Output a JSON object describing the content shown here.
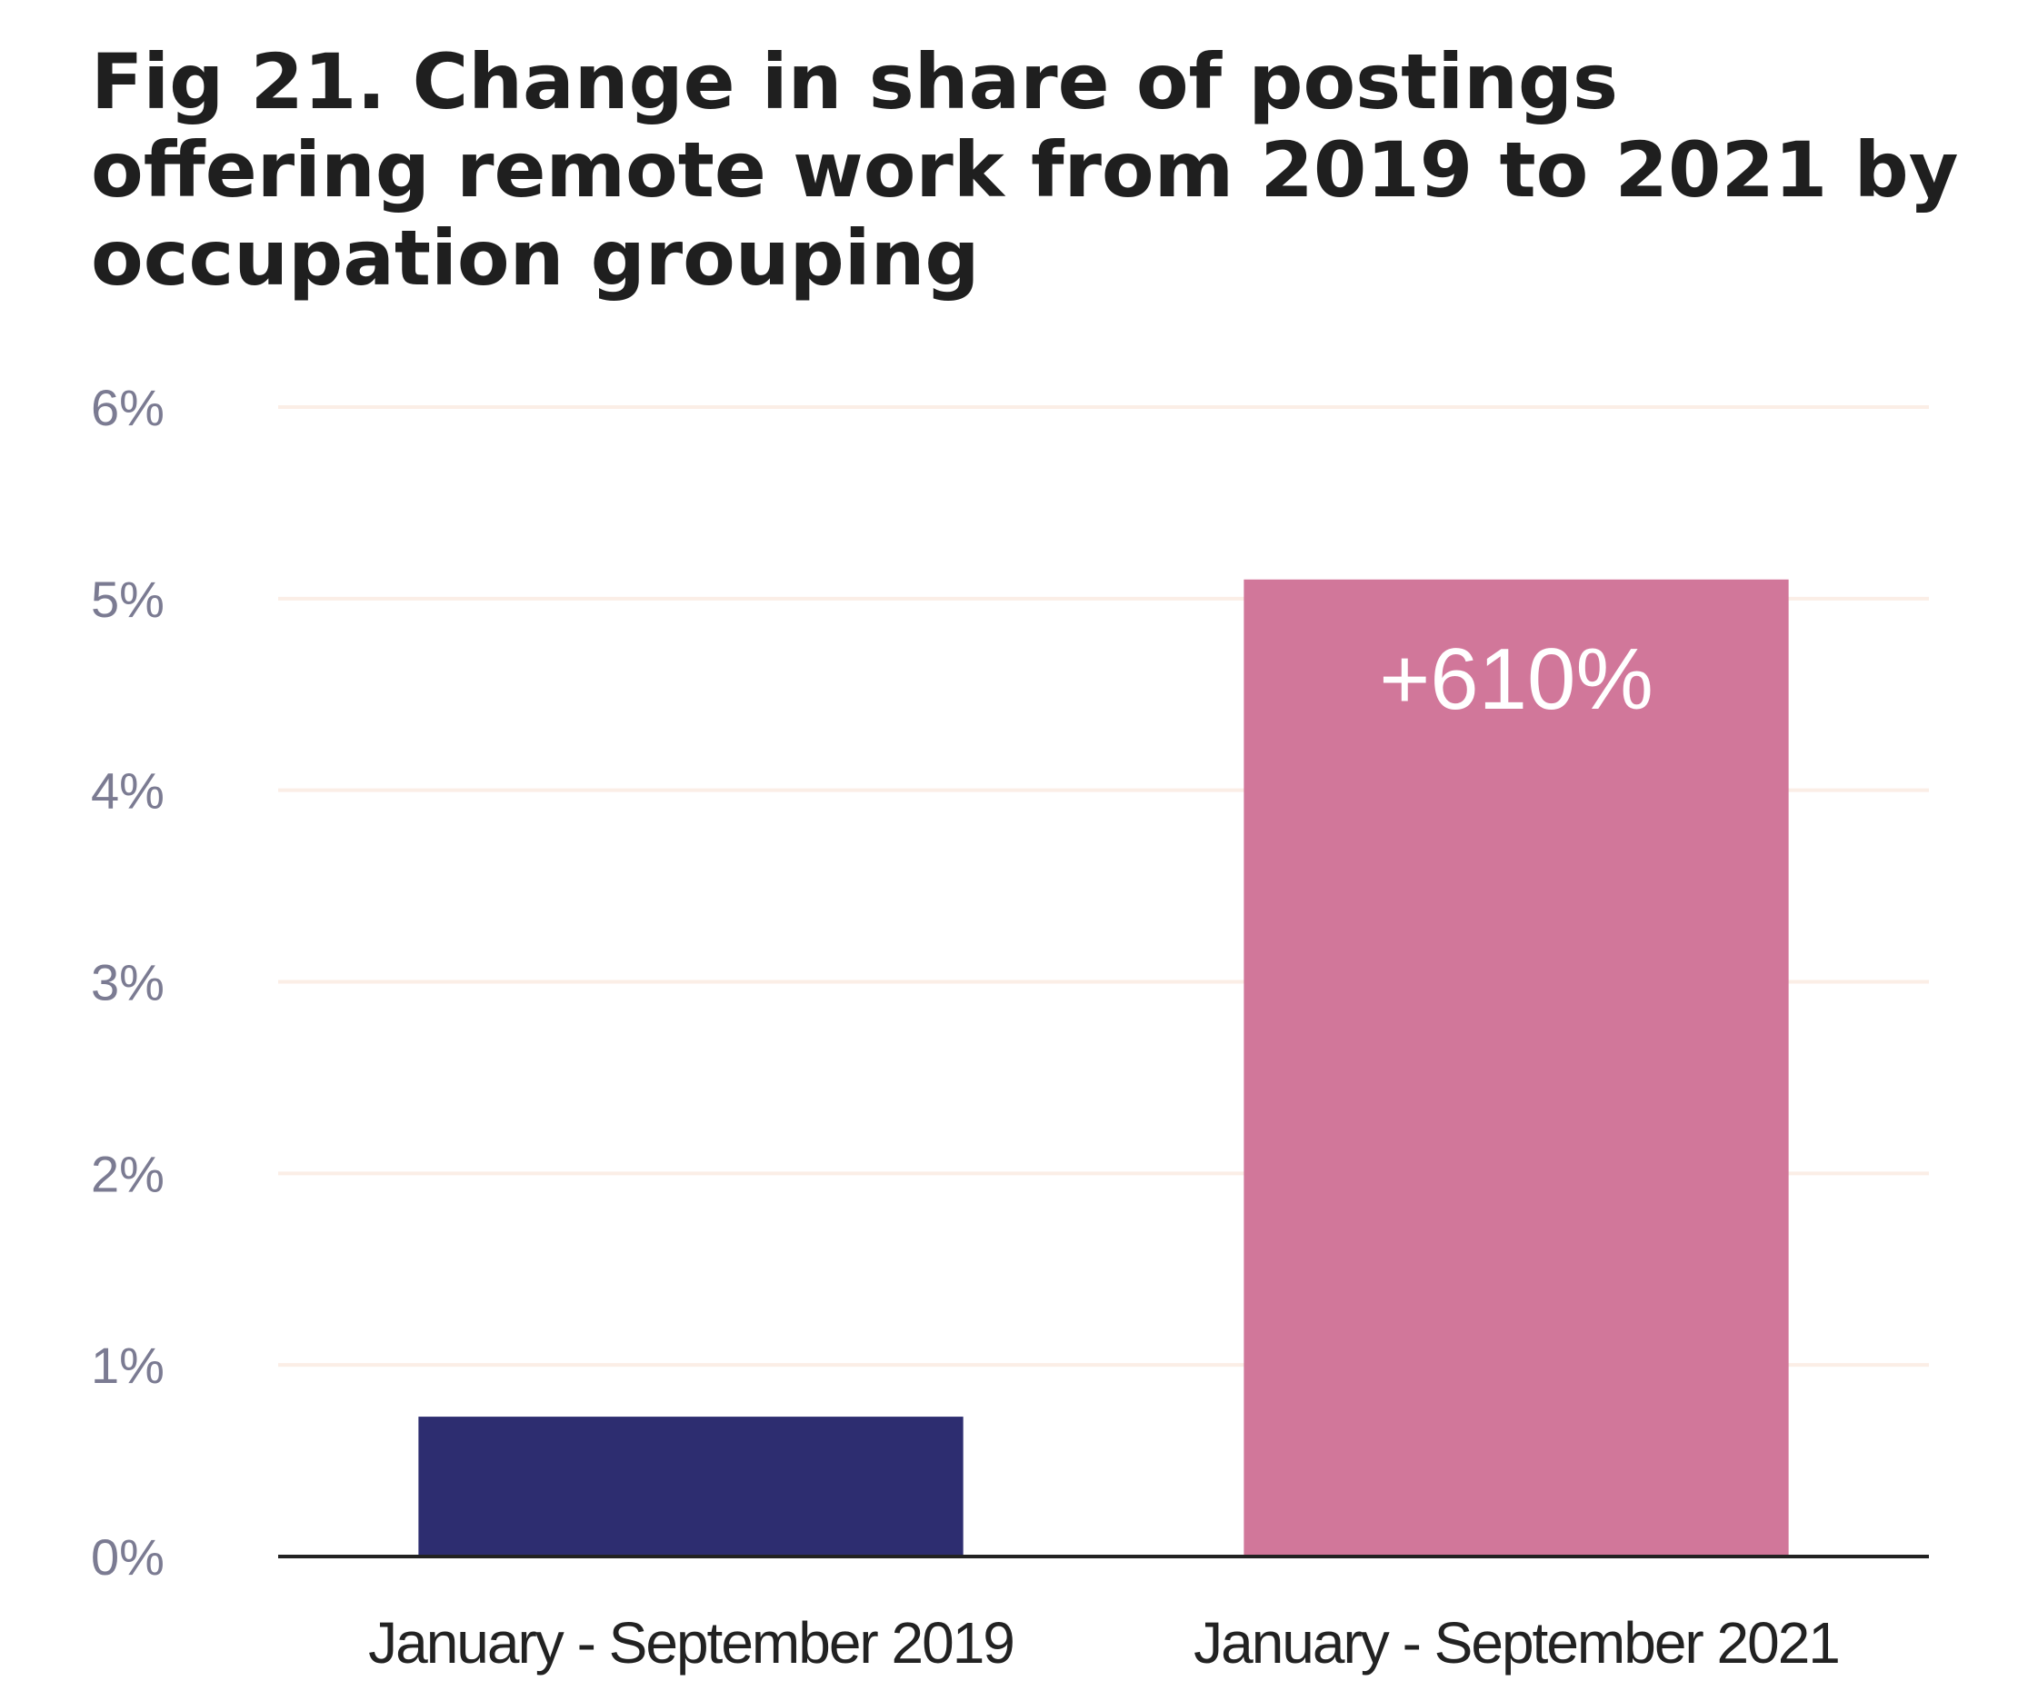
{
  "chart_data": {
    "type": "bar",
    "title": "Fig 21. Change in share of postings offering remote work from 2019 to 2021 by occupation grouping",
    "xlabel": "",
    "ylabel": "",
    "categories": [
      "January - September 2019",
      "January - September 2021"
    ],
    "values": [
      0.73,
      5.1
    ],
    "value_unit": "%",
    "ylim": [
      0,
      6
    ],
    "yticks": [
      "0%",
      "1%",
      "2%",
      "3%",
      "4%",
      "5%",
      "6%"
    ],
    "bar_colors": [
      "#2d2d70",
      "#d1779a"
    ],
    "annotations": [
      {
        "category": "January - September 2021",
        "text": "+610%"
      }
    ],
    "grid": true,
    "legend": "none"
  },
  "colors": {
    "grid": "#fbeee6",
    "axis": "#222222"
  }
}
